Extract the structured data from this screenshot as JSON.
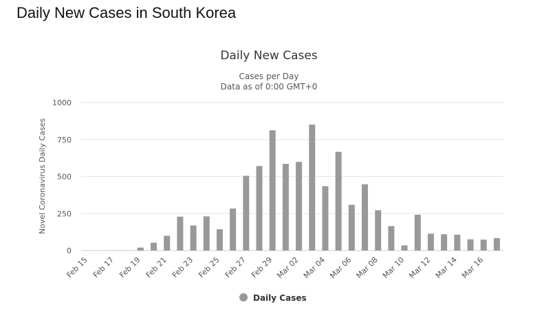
{
  "page": {
    "heading": "Daily New Cases in South Korea"
  },
  "chart_data": {
    "type": "bar",
    "title": "Daily New Cases",
    "subtitle": [
      "Cases per Day",
      "Data as of 0:00 GMT+0"
    ],
    "ylabel": "Novel Coronavirus Daily Cases",
    "ylim": [
      0,
      1000
    ],
    "yticks": [
      0,
      250,
      500,
      750,
      1000
    ],
    "grid": true,
    "legend_position": "bottom-center",
    "bar_color": "#999999",
    "categories": [
      "Feb 15",
      "Feb 16",
      "Feb 17",
      "Feb 18",
      "Feb 19",
      "Feb 20",
      "Feb 21",
      "Feb 22",
      "Feb 23",
      "Feb 24",
      "Feb 25",
      "Feb 26",
      "Feb 27",
      "Feb 28",
      "Feb 29",
      "Mar 01",
      "Mar 02",
      "Mar 03",
      "Mar 04",
      "Mar 05",
      "Mar 06",
      "Mar 07",
      "Mar 08",
      "Mar 09",
      "Mar 10",
      "Mar 11",
      "Mar 12",
      "Mar 13",
      "Mar 14",
      "Mar 15",
      "Mar 16",
      "Mar 17"
    ],
    "xtick_labels": [
      "Feb 15",
      "Feb 17",
      "Feb 19",
      "Feb 21",
      "Feb 23",
      "Feb 25",
      "Feb 27",
      "Feb 29",
      "Mar 02",
      "Mar 04",
      "Mar 06",
      "Mar 08",
      "Mar 10",
      "Mar 12",
      "Mar 14",
      "Mar 16"
    ],
    "series": [
      {
        "name": "Daily Cases",
        "values": [
          0,
          0,
          1,
          1,
          20,
          53,
          100,
          229,
          169,
          231,
          144,
          284,
          505,
          571,
          813,
          586,
          599,
          851,
          435,
          667,
          309,
          448,
          272,
          165,
          35,
          242,
          114,
          110,
          107,
          76,
          74,
          84
        ]
      }
    ]
  }
}
